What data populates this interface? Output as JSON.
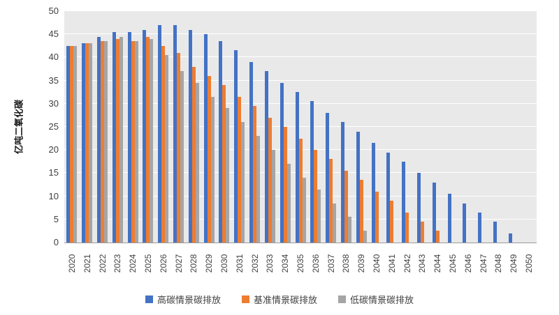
{
  "chart_data": {
    "type": "bar",
    "title": "",
    "xlabel": "",
    "ylabel": "亿吨二氧化碳",
    "ylim": [
      0,
      50
    ],
    "yticks": [
      0,
      5,
      10,
      15,
      20,
      25,
      30,
      35,
      40,
      45,
      50
    ],
    "grid": true,
    "legend_position": "bottom",
    "categories": [
      "2020",
      "2021",
      "2022",
      "2023",
      "2024",
      "2025",
      "2026",
      "2027",
      "2028",
      "2029",
      "2030",
      "2031",
      "2032",
      "2033",
      "2034",
      "2035",
      "2036",
      "2037",
      "2038",
      "2039",
      "2040",
      "2041",
      "2042",
      "2043",
      "2044",
      "2045",
      "2046",
      "2047",
      "2048",
      "2049",
      "2050"
    ],
    "series": [
      {
        "name": "高碳情景碳排放",
        "color": "#4472C4",
        "values": [
          42.5,
          43,
          44.5,
          45.5,
          45.5,
          46,
          47,
          47,
          46,
          45,
          43.5,
          41.5,
          39,
          37,
          34.5,
          32.5,
          30.5,
          28,
          26,
          24,
          21.5,
          19.5,
          17.5,
          15,
          13,
          10.5,
          8.5,
          6.5,
          4.5,
          2,
          0
        ]
      },
      {
        "name": "基准情景碳排放",
        "color": "#ED7D31",
        "values": [
          42.5,
          43,
          43.5,
          44,
          43.5,
          44.5,
          42.5,
          41,
          38,
          36,
          34,
          31.5,
          29.5,
          27,
          25,
          22.5,
          20,
          18,
          15.5,
          13.5,
          11,
          9,
          6.5,
          4.5,
          2.5,
          0,
          0,
          0,
          0,
          0,
          0
        ]
      },
      {
        "name": "低碳情景碳排放",
        "color": "#A5A5A5",
        "values": [
          42.5,
          43,
          43.5,
          44.5,
          43.5,
          44,
          40.5,
          37,
          34.5,
          31.5,
          29,
          26,
          23,
          20,
          17,
          14,
          11.5,
          8.5,
          5.5,
          2.5,
          0,
          0,
          0,
          0,
          0,
          0,
          0,
          0,
          0,
          0,
          0
        ]
      }
    ]
  }
}
